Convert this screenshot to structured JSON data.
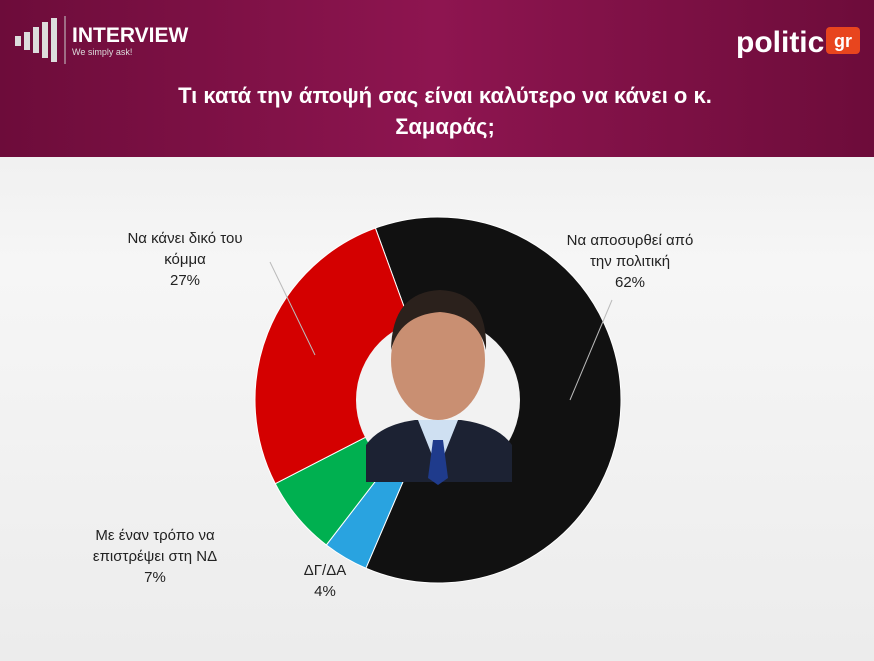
{
  "header": {
    "brand": "INTERVIEW",
    "tagline": "We simply ask!",
    "site": "politic",
    "site_suffix": "gr"
  },
  "chart_data": {
    "type": "donut",
    "title": "Τι κατά την άποψή σας είναι καλύτερο να κάνει ο κ. Σαμαράς;",
    "categories": [
      "Να αποσυρθεί από την πολιτική",
      "ΔΓ/ΔΑ",
      "Με έναν τρόπο να επιστρέψει στη ΝΔ",
      "Να κάνει δικό του κόμμα"
    ],
    "values": [
      62,
      4,
      7,
      27
    ],
    "value_labels": [
      "62%",
      "4%",
      "7%",
      "27%"
    ],
    "colors": [
      "#111111",
      "#29a3e0",
      "#00b050",
      "#d40000"
    ]
  }
}
